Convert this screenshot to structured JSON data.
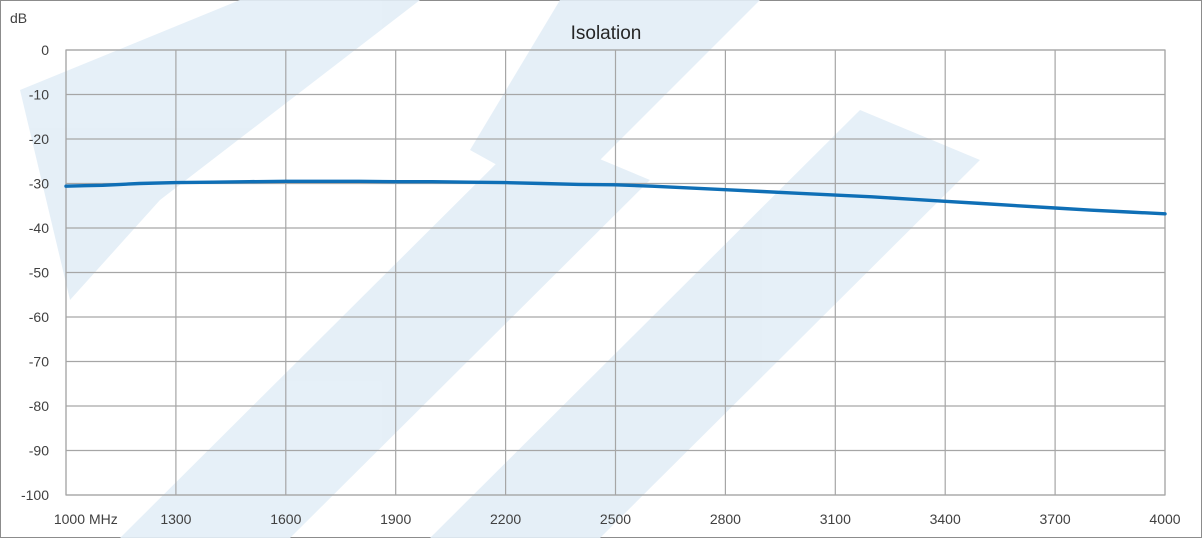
{
  "chart_data": {
    "type": "line",
    "title": "Isolation",
    "ylabel": "dB",
    "xunit": "MHz",
    "xlim": [
      1000,
      4000
    ],
    "ylim": [
      -100,
      0
    ],
    "xticks": [
      1000,
      1300,
      1600,
      1900,
      2200,
      2500,
      2800,
      3100,
      3400,
      3700,
      4000
    ],
    "xtick_labels": [
      "1000",
      "1300",
      "1600",
      "1900",
      "2200",
      "2500",
      "2800",
      "3100",
      "3400",
      "3700",
      "4000"
    ],
    "yticks": [
      0,
      -10,
      -20,
      -30,
      -40,
      -50,
      -60,
      -70,
      -80,
      -90,
      -100
    ],
    "ytick_labels": [
      "0",
      "-10",
      "-20",
      "-30",
      "-40",
      "-50",
      "-60",
      "-70",
      "-80",
      "-90",
      "-100"
    ],
    "grid": true,
    "legend": "none",
    "series": [
      {
        "color": "#0f6fb6",
        "x": [
          1000,
          1050,
          1100,
          1150,
          1200,
          1300,
          1400,
          1500,
          1600,
          1700,
          1800,
          1900,
          2000,
          2100,
          2200,
          2300,
          2400,
          2500,
          2600,
          2700,
          2800,
          2900,
          3000,
          3100,
          3200,
          3300,
          3400,
          3500,
          3600,
          3700,
          3800,
          3900,
          4000
        ],
        "y": [
          -30.6,
          -30.5,
          -30.4,
          -30.2,
          -30.0,
          -29.8,
          -29.7,
          -29.6,
          -29.5,
          -29.5,
          -29.5,
          -29.6,
          -29.6,
          -29.7,
          -29.8,
          -30.0,
          -30.2,
          -30.3,
          -30.6,
          -31.0,
          -31.4,
          -31.8,
          -32.2,
          -32.6,
          -33.0,
          -33.5,
          -34.0,
          -34.5,
          -35.0,
          -35.5,
          -36.0,
          -36.4,
          -36.8
        ]
      }
    ]
  }
}
